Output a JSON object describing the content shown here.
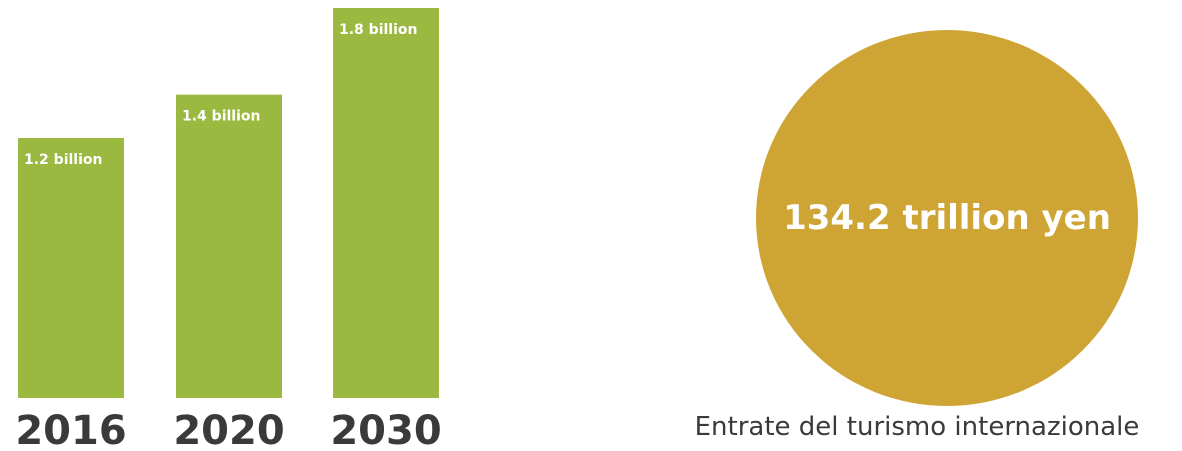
{
  "chart_data": {
    "type": "bar",
    "categories": [
      "2016",
      "2020",
      "2030"
    ],
    "values": [
      1.2,
      1.4,
      1.8
    ],
    "value_labels": [
      "1.2 billion",
      "1.4 billion",
      "1.8 billion"
    ],
    "unit": "billion",
    "title": "",
    "xlabel": "",
    "ylabel": "",
    "ylim": [
      0,
      1.8
    ],
    "grid": false,
    "legend": "none",
    "bar_color": "#9bb840"
  },
  "revenue": {
    "value": "134.2 trillion yen",
    "caption": "Entrate del turismo internazionale",
    "color": "#cea434"
  }
}
